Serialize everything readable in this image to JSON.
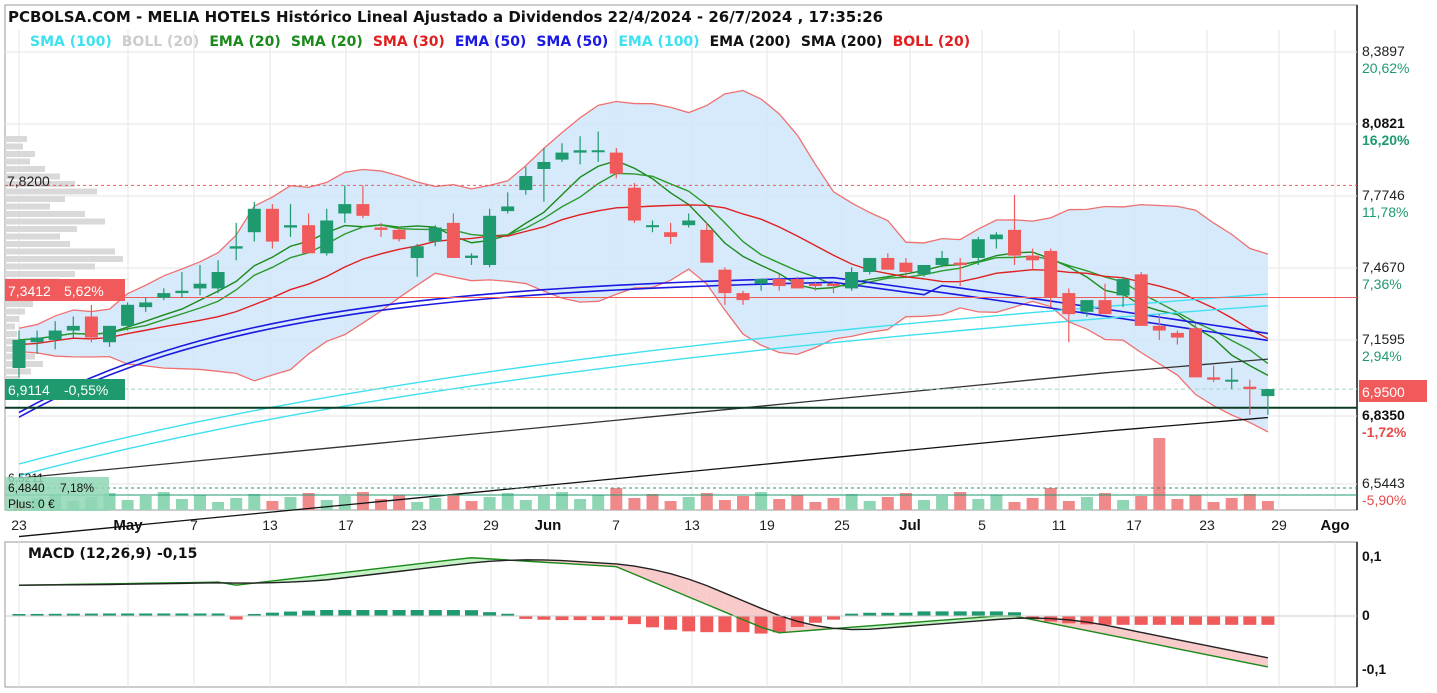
{
  "title": "PCBOLSA.COM - MELIA HOTELS Histórico Lineal Ajustado a Dividendos 22/4/2024 - 26/7/2024 , 17:35:26",
  "legend": [
    {
      "label": "SMA (100)",
      "color": "#3fe0f0"
    },
    {
      "label": "BOLL (20)",
      "color": "#cccccc"
    },
    {
      "label": "EMA (20)",
      "color": "#1a8a1a"
    },
    {
      "label": "SMA (20)",
      "color": "#1a8a1a"
    },
    {
      "label": "SMA (30)",
      "color": "#e02020"
    },
    {
      "label": "EMA (50)",
      "color": "#1a1ae0"
    },
    {
      "label": "SMA (50)",
      "color": "#1a1ae0"
    },
    {
      "label": "EMA (100)",
      "color": "#3fe0f0"
    },
    {
      "label": "EMA (200)",
      "color": "#111111"
    },
    {
      "label": "SMA (200)",
      "color": "#111111"
    },
    {
      "label": "BOLL (20)",
      "color": "#e02020"
    }
  ],
  "price_axis": {
    "labels": [
      {
        "value": "8,3897",
        "pct": "20,62%",
        "pct_color": "#1f9a6e",
        "bold": false
      },
      {
        "value": "8,0821",
        "pct": "16,20%",
        "pct_color": "#1f9a6e",
        "bold": true
      },
      {
        "value": "7,7746",
        "pct": "11,78%",
        "pct_color": "#1f9a6e",
        "bold": false
      },
      {
        "value": "7,4670",
        "pct": "7,36%",
        "pct_color": "#1f9a6e",
        "bold": false
      },
      {
        "value": "7,1595",
        "pct": "2,94%",
        "pct_color": "#1f9a6e",
        "bold": false
      },
      {
        "value": "6,8350",
        "pct": "-1,72%",
        "pct_color": "#e84a4a",
        "bold": true
      },
      {
        "value": "6,5443",
        "pct": "-5,90%",
        "pct_color": "#e84a4a",
        "bold": false
      }
    ],
    "last_price": "6,9500",
    "last_price_color": "#f05a5a"
  },
  "markers": {
    "level_max_label": "7,8200",
    "left_box_1": {
      "price": "7,3412",
      "pct": "5,62%",
      "color": "#f05a5a"
    },
    "left_box_2": {
      "price": "6,9114",
      "pct": "-0,55%",
      "color": "#1f9a6e"
    },
    "left_box_3": {
      "price": "6,4840",
      "pct": "7,18%",
      "color": "#8fd6b4"
    },
    "cut_label": "6,5211",
    "plus_label": "Plus: 0 €"
  },
  "x_axis": [
    {
      "label": "23",
      "bold": false
    },
    {
      "label": "May",
      "bold": true
    },
    {
      "label": "7",
      "bold": false
    },
    {
      "label": "13",
      "bold": false
    },
    {
      "label": "17",
      "bold": false
    },
    {
      "label": "23",
      "bold": false
    },
    {
      "label": "29",
      "bold": false
    },
    {
      "label": "Jun",
      "bold": true
    },
    {
      "label": "7",
      "bold": false
    },
    {
      "label": "13",
      "bold": false
    },
    {
      "label": "19",
      "bold": false
    },
    {
      "label": "25",
      "bold": false
    },
    {
      "label": "Jul",
      "bold": true
    },
    {
      "label": "5",
      "bold": false
    },
    {
      "label": "11",
      "bold": false
    },
    {
      "label": "17",
      "bold": false
    },
    {
      "label": "23",
      "bold": false
    },
    {
      "label": "29",
      "bold": false
    },
    {
      "label": "Ago",
      "bold": true
    }
  ],
  "macd": {
    "label": "MACD (12,26,9)",
    "value": "-0,15",
    "axis": [
      {
        "value": "0,1",
        "color": "#e03030"
      },
      {
        "value": "0",
        "color": "#111111"
      },
      {
        "value": "-0,1",
        "color": "#1a8a1a"
      }
    ]
  },
  "chart_data": {
    "type": "candlestick",
    "title": "PCBOLSA.COM - MELIA HOTELS Histórico Lineal Ajustado a Dividendos 22/4/2024 - 26/7/2024 , 17:35:26",
    "ylim": [
      6.42,
      8.48
    ],
    "candles": [
      [
        7.04,
        7.2,
        7.0,
        7.16
      ],
      [
        7.15,
        7.2,
        7.1,
        7.17
      ],
      [
        7.16,
        7.24,
        7.12,
        7.2
      ],
      [
        7.2,
        7.26,
        7.17,
        7.22
      ],
      [
        7.26,
        7.31,
        7.15,
        7.17
      ],
      [
        7.15,
        7.22,
        7.13,
        7.22
      ],
      [
        7.22,
        7.32,
        7.2,
        7.31
      ],
      [
        7.3,
        7.34,
        7.28,
        7.32
      ],
      [
        7.34,
        7.38,
        7.33,
        7.36
      ],
      [
        7.36,
        7.45,
        7.34,
        7.37
      ],
      [
        7.38,
        7.48,
        7.35,
        7.4
      ],
      [
        7.38,
        7.5,
        7.36,
        7.45
      ],
      [
        7.55,
        7.66,
        7.5,
        7.56
      ],
      [
        7.62,
        7.75,
        7.58,
        7.72
      ],
      [
        7.72,
        7.74,
        7.55,
        7.58
      ],
      [
        7.64,
        7.74,
        7.6,
        7.65
      ],
      [
        7.65,
        7.7,
        7.53,
        7.53
      ],
      [
        7.53,
        7.72,
        7.52,
        7.67
      ],
      [
        7.7,
        7.82,
        7.66,
        7.74
      ],
      [
        7.74,
        7.82,
        7.68,
        7.69
      ],
      [
        7.64,
        7.66,
        7.6,
        7.63
      ],
      [
        7.63,
        7.64,
        7.58,
        7.59
      ],
      [
        7.51,
        7.57,
        7.43,
        7.56
      ],
      [
        7.58,
        7.65,
        7.56,
        7.64
      ],
      [
        7.66,
        7.7,
        7.51,
        7.51
      ],
      [
        7.51,
        7.53,
        7.48,
        7.52
      ],
      [
        7.48,
        7.72,
        7.47,
        7.69
      ],
      [
        7.71,
        7.79,
        7.7,
        7.73
      ],
      [
        7.8,
        7.9,
        7.78,
        7.86
      ],
      [
        7.89,
        7.98,
        7.75,
        7.92
      ],
      [
        7.93,
        8.0,
        7.92,
        7.96
      ],
      [
        7.96,
        8.03,
        7.91,
        7.97
      ],
      [
        7.97,
        8.05,
        7.92,
        7.97
      ],
      [
        7.96,
        7.98,
        7.85,
        7.87
      ],
      [
        7.81,
        7.83,
        7.66,
        7.67
      ],
      [
        7.65,
        7.67,
        7.62,
        7.65
      ],
      [
        7.62,
        7.66,
        7.57,
        7.6
      ],
      [
        7.65,
        7.7,
        7.64,
        7.67
      ],
      [
        7.63,
        7.66,
        7.49,
        7.49
      ],
      [
        7.46,
        7.47,
        7.31,
        7.36
      ],
      [
        7.36,
        7.37,
        7.31,
        7.33
      ],
      [
        7.4,
        7.42,
        7.37,
        7.42
      ],
      [
        7.42,
        7.44,
        7.37,
        7.39
      ],
      [
        7.42,
        7.43,
        7.38,
        7.38
      ],
      [
        7.4,
        7.41,
        7.37,
        7.39
      ],
      [
        7.4,
        7.41,
        7.36,
        7.39
      ],
      [
        7.38,
        7.47,
        7.37,
        7.45
      ],
      [
        7.45,
        7.51,
        7.44,
        7.51
      ],
      [
        7.51,
        7.53,
        7.46,
        7.46
      ],
      [
        7.49,
        7.51,
        7.43,
        7.45
      ],
      [
        7.44,
        7.48,
        7.43,
        7.48
      ],
      [
        7.48,
        7.54,
        7.47,
        7.51
      ],
      [
        7.49,
        7.51,
        7.39,
        7.48
      ],
      [
        7.51,
        7.6,
        7.48,
        7.59
      ],
      [
        7.59,
        7.62,
        7.55,
        7.61
      ],
      [
        7.63,
        7.78,
        7.48,
        7.52
      ],
      [
        7.52,
        7.55,
        7.46,
        7.5
      ],
      [
        7.54,
        7.55,
        7.3,
        7.34
      ],
      [
        7.36,
        7.38,
        7.15,
        7.27
      ],
      [
        7.28,
        7.33,
        7.26,
        7.33
      ],
      [
        7.33,
        7.4,
        7.28,
        7.27
      ],
      [
        7.35,
        7.43,
        7.3,
        7.42
      ],
      [
        7.44,
        7.45,
        7.22,
        7.22
      ],
      [
        7.22,
        7.27,
        7.16,
        7.2
      ],
      [
        7.19,
        7.2,
        7.14,
        7.17
      ],
      [
        7.21,
        7.23,
        7.0,
        7.0
      ],
      [
        7.0,
        7.05,
        6.98,
        6.99
      ],
      [
        6.99,
        7.04,
        6.95,
        6.99
      ],
      [
        6.96,
        6.99,
        6.84,
        6.95
      ],
      [
        6.92,
        6.95,
        6.84,
        6.95
      ]
    ],
    "volume": [
      0,
      1,
      1,
      1,
      1,
      1,
      1,
      1,
      1,
      1,
      1,
      1,
      1,
      1,
      0,
      1,
      0,
      1,
      1,
      0,
      0,
      0,
      1,
      1,
      0,
      0,
      1,
      1,
      1,
      1,
      1,
      1,
      1,
      0,
      0,
      0,
      0,
      1,
      0,
      0,
      0,
      1,
      0,
      0,
      0,
      0,
      1,
      1,
      0,
      0,
      1,
      1,
      0,
      1,
      1,
      0,
      0,
      0,
      0,
      1,
      0,
      1,
      0,
      0,
      0,
      0,
      0,
      0,
      0,
      0
    ]
  }
}
